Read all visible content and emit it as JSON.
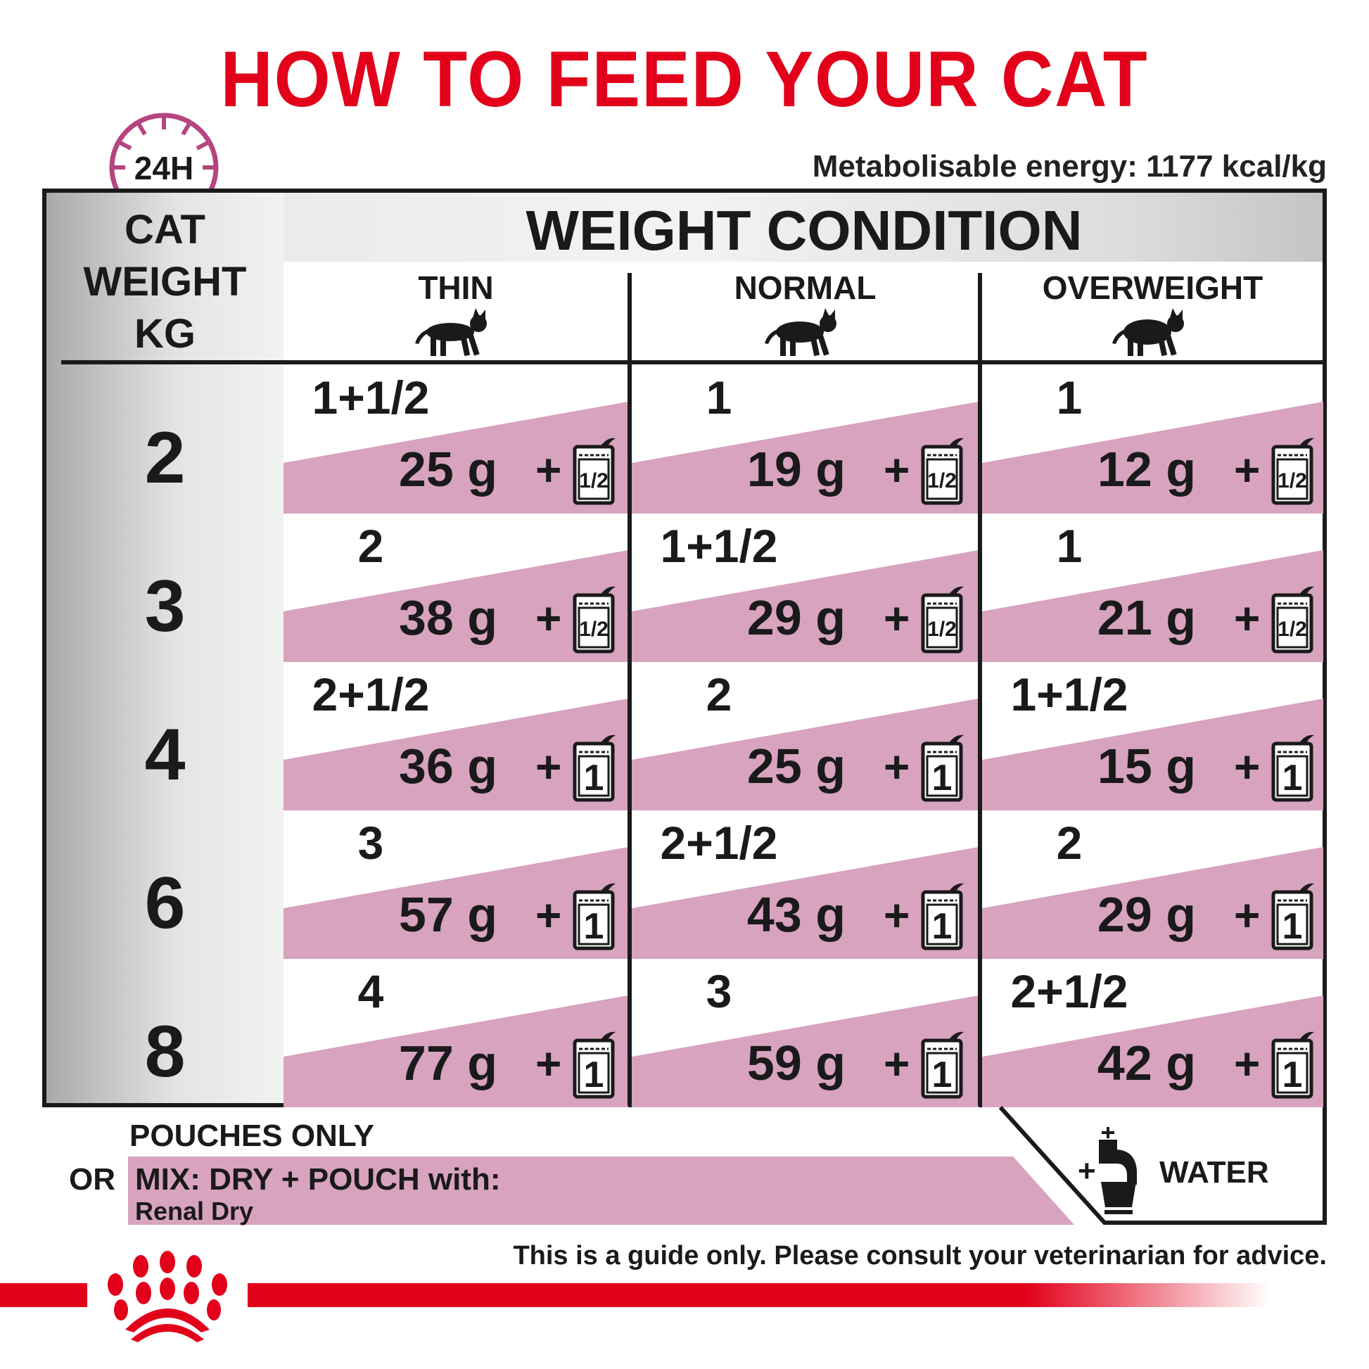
{
  "title": "HOW TO FEED YOUR CAT",
  "clock_label": "24H",
  "energy": "Metabolisable energy: 1177 kcal/kg",
  "table": {
    "weight_header": [
      "CAT",
      "WEIGHT",
      "KG"
    ],
    "condition_header": "WEIGHT CONDITION",
    "columns": [
      "THIN",
      "NORMAL",
      "OVERWEIGHT"
    ],
    "unit": "g",
    "rows": [
      {
        "weight": "2",
        "cells": [
          {
            "pouches": "1+1/2",
            "dry": "25",
            "pouch": "1/2"
          },
          {
            "pouches": "1",
            "dry": "19",
            "pouch": "1/2"
          },
          {
            "pouches": "1",
            "dry": "12",
            "pouch": "1/2"
          }
        ]
      },
      {
        "weight": "3",
        "cells": [
          {
            "pouches": "2",
            "dry": "38",
            "pouch": "1/2"
          },
          {
            "pouches": "1+1/2",
            "dry": "29",
            "pouch": "1/2"
          },
          {
            "pouches": "1",
            "dry": "21",
            "pouch": "1/2"
          }
        ]
      },
      {
        "weight": "4",
        "cells": [
          {
            "pouches": "2+1/2",
            "dry": "36",
            "pouch": "1"
          },
          {
            "pouches": "2",
            "dry": "25",
            "pouch": "1"
          },
          {
            "pouches": "1+1/2",
            "dry": "15",
            "pouch": "1"
          }
        ]
      },
      {
        "weight": "6",
        "cells": [
          {
            "pouches": "3",
            "dry": "57",
            "pouch": "1"
          },
          {
            "pouches": "2+1/2",
            "dry": "43",
            "pouch": "1"
          },
          {
            "pouches": "2",
            "dry": "29",
            "pouch": "1"
          }
        ]
      },
      {
        "weight": "8",
        "cells": [
          {
            "pouches": "4",
            "dry": "77",
            "pouch": "1"
          },
          {
            "pouches": "3",
            "dry": "59",
            "pouch": "1"
          },
          {
            "pouches": "2+1/2",
            "dry": "42",
            "pouch": "1"
          }
        ]
      }
    ]
  },
  "footer": {
    "pouches_only": "POUCHES ONLY",
    "or": "OR",
    "mix": "MIX: DRY + POUCH with:",
    "mix_product": "Renal Dry",
    "plus": "+",
    "water": "WATER",
    "disclaimer": "This is a guide only. Please consult your veterinarian for advice."
  },
  "colors": {
    "brand_red": "#e2001a",
    "pink": "#d8a3bf",
    "clock": "#b5457f"
  },
  "icons": {
    "clock": "clock-24h-icon",
    "cat": "cat-silhouette-icon",
    "pouch": "pouch-icon",
    "water": "water-tap-bowl-icon",
    "logo": "royal-canin-crown-logo"
  }
}
